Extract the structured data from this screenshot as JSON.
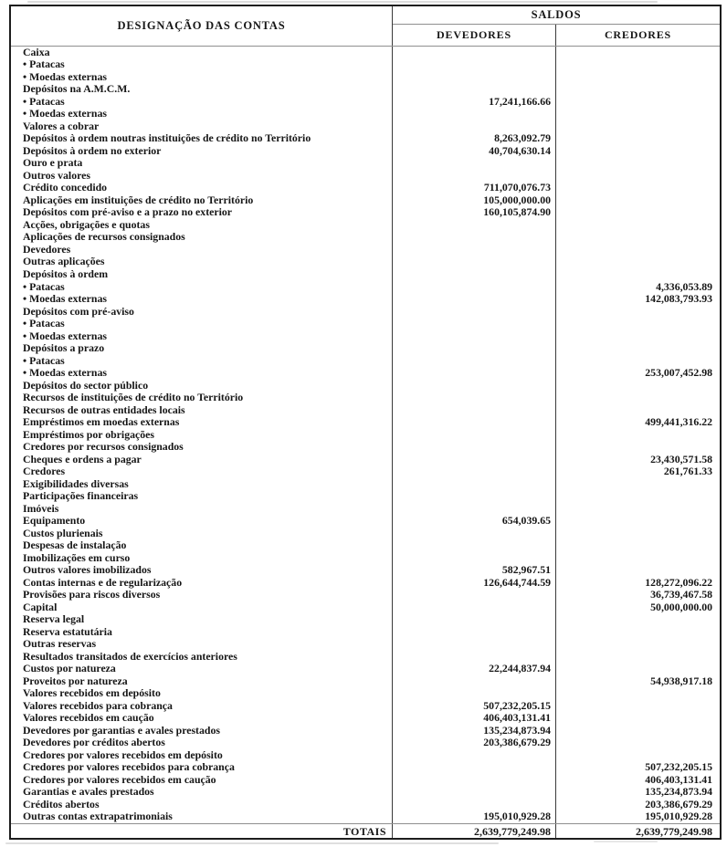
{
  "header": {
    "designacao": "DESIGNAÇÃO DAS CONTAS",
    "saldos": "SALDOS",
    "devedores": "DEVEDORES",
    "credores": "CREDORES"
  },
  "rows": [
    {
      "label": "Caixa",
      "d": "",
      "c": ""
    },
    {
      "label": "• Patacas",
      "d": "",
      "c": ""
    },
    {
      "label": "• Moedas externas",
      "d": "",
      "c": ""
    },
    {
      "label": "Depósitos na A.M.C.M.",
      "d": "",
      "c": ""
    },
    {
      "label": "• Patacas",
      "d": "17,241,166.66",
      "c": ""
    },
    {
      "label": "• Moedas externas",
      "d": "",
      "c": ""
    },
    {
      "label": "Valores a cobrar",
      "d": "",
      "c": ""
    },
    {
      "label": "Depósitos à ordem noutras instituições de crédito no Território",
      "d": "8,263,092.79",
      "c": ""
    },
    {
      "label": "Depósitos à ordem no exterior",
      "d": "40,704,630.14",
      "c": ""
    },
    {
      "label": "Ouro e prata",
      "d": "",
      "c": ""
    },
    {
      "label": "Outros valores",
      "d": "",
      "c": ""
    },
    {
      "label": "Crédito concedido",
      "d": "711,070,076.73",
      "c": ""
    },
    {
      "label": "Aplicações em instituições de crédito no Território",
      "d": "105,000,000.00",
      "c": ""
    },
    {
      "label": "Depósitos com pré-aviso e a prazo no exterior",
      "d": "160,105,874.90",
      "c": ""
    },
    {
      "label": "Acções, obrigações e quotas",
      "d": "",
      "c": ""
    },
    {
      "label": "Aplicações de recursos consignados",
      "d": "",
      "c": ""
    },
    {
      "label": "Devedores",
      "d": "",
      "c": ""
    },
    {
      "label": "Outras aplicações",
      "d": "",
      "c": ""
    },
    {
      "label": "Depósitos à ordem",
      "d": "",
      "c": ""
    },
    {
      "label": "• Patacas",
      "d": "",
      "c": "4,336,053.89"
    },
    {
      "label": "• Moedas externas",
      "d": "",
      "c": "142,083,793.93"
    },
    {
      "label": "Depósitos com pré-aviso",
      "d": "",
      "c": ""
    },
    {
      "label": "• Patacas",
      "d": "",
      "c": ""
    },
    {
      "label": "• Moedas externas",
      "d": "",
      "c": ""
    },
    {
      "label": "Depósitos a prazo",
      "d": "",
      "c": ""
    },
    {
      "label": "• Patacas",
      "d": "",
      "c": ""
    },
    {
      "label": "• Moedas externas",
      "d": "",
      "c": "253,007,452.98"
    },
    {
      "label": "Depósitos do sector público",
      "d": "",
      "c": ""
    },
    {
      "label": "Recursos de instituições de crédito no Território",
      "d": "",
      "c": ""
    },
    {
      "label": "Recursos de outras entidades locais",
      "d": "",
      "c": ""
    },
    {
      "label": "Empréstimos em moedas externas",
      "d": "",
      "c": "499,441,316.22"
    },
    {
      "label": "Empréstimos por obrigações",
      "d": "",
      "c": ""
    },
    {
      "label": "Credores por recursos consignados",
      "d": "",
      "c": ""
    },
    {
      "label": "Cheques e ordens a pagar",
      "d": "",
      "c": "23,430,571.58"
    },
    {
      "label": "Credores",
      "d": "",
      "c": "261,761.33"
    },
    {
      "label": "Exigibilidades diversas",
      "d": "",
      "c": ""
    },
    {
      "label": "Participações financeiras",
      "d": "",
      "c": ""
    },
    {
      "label": "Imóveis",
      "d": "",
      "c": ""
    },
    {
      "label": "Equipamento",
      "d": "654,039.65",
      "c": ""
    },
    {
      "label": "Custos plurienais",
      "d": "",
      "c": ""
    },
    {
      "label": "Despesas de instalação",
      "d": "",
      "c": ""
    },
    {
      "label": "Imobilizações em curso",
      "d": "",
      "c": ""
    },
    {
      "label": "Outros valores imobilizados",
      "d": "582,967.51",
      "c": ""
    },
    {
      "label": "Contas internas e de regularização",
      "d": "126,644,744.59",
      "c": "128,272,096.22"
    },
    {
      "label": "Provisões para riscos diversos",
      "d": "",
      "c": "36,739,467.58"
    },
    {
      "label": "Capital",
      "d": "",
      "c": "50,000,000.00"
    },
    {
      "label": "Reserva legal",
      "d": "",
      "c": ""
    },
    {
      "label": "Reserva estatutária",
      "d": "",
      "c": ""
    },
    {
      "label": "Outras reservas",
      "d": "",
      "c": ""
    },
    {
      "label": "Resultados transitados de exercícios anteriores",
      "d": "",
      "c": ""
    },
    {
      "label": "Custos por natureza",
      "d": "22,244,837.94",
      "c": ""
    },
    {
      "label": "Proveitos por natureza",
      "d": "",
      "c": "54,938,917.18"
    },
    {
      "label": "Valores recebidos em depósito",
      "d": "",
      "c": ""
    },
    {
      "label": "Valores recebidos para cobrança",
      "d": "507,232,205.15",
      "c": ""
    },
    {
      "label": "Valores recebidos em caução",
      "d": "406,403,131.41",
      "c": ""
    },
    {
      "label": "Devedores por garantias e avales prestados",
      "d": "135,234,873.94",
      "c": ""
    },
    {
      "label": "Devedores por créditos abertos",
      "d": "203,386,679.29",
      "c": ""
    },
    {
      "label": "Credores por valores recebidos em depósito",
      "d": "",
      "c": ""
    },
    {
      "label": "Credores por valores recebidos para cobrança",
      "d": "",
      "c": "507,232,205.15"
    },
    {
      "label": "Credores por valores recebidos em caução",
      "d": "",
      "c": "406,403,131.41"
    },
    {
      "label": "Garantias e avales prestados",
      "d": "",
      "c": "135,234,873.94"
    },
    {
      "label": "Créditos abertos",
      "d": "",
      "c": "203,386,679.29"
    },
    {
      "label": "Outras contas extrapatrimoniais",
      "d": "195,010,929.28",
      "c": "195,010,929.28"
    }
  ],
  "totals": {
    "label": "TOTAIS",
    "devedores": "2,639,779,249.98",
    "credores": "2,639,779,249.98"
  }
}
